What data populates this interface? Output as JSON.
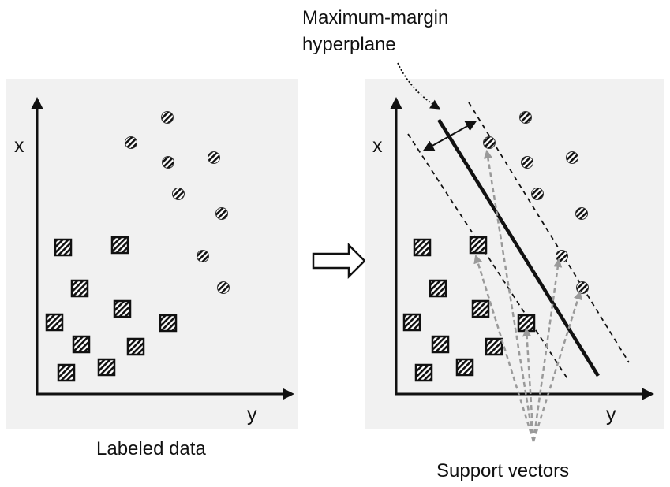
{
  "colors": {
    "panel_bg": "#f1f1f1",
    "ink": "#111111",
    "support_arrow": "#9a9a9a"
  },
  "left_panel": {
    "x_axis_label": "x",
    "y_axis_label": "y",
    "caption": "Labeled data"
  },
  "right_panel": {
    "x_axis_label": "x",
    "y_axis_label": "y",
    "hyperplane_label_line1": "Maximum-margin",
    "hyperplane_label_line2": "hyperplane",
    "support_vectors_label": "Support vectors"
  },
  "transition_arrow_icon": "hollow-right-arrow-icon"
}
